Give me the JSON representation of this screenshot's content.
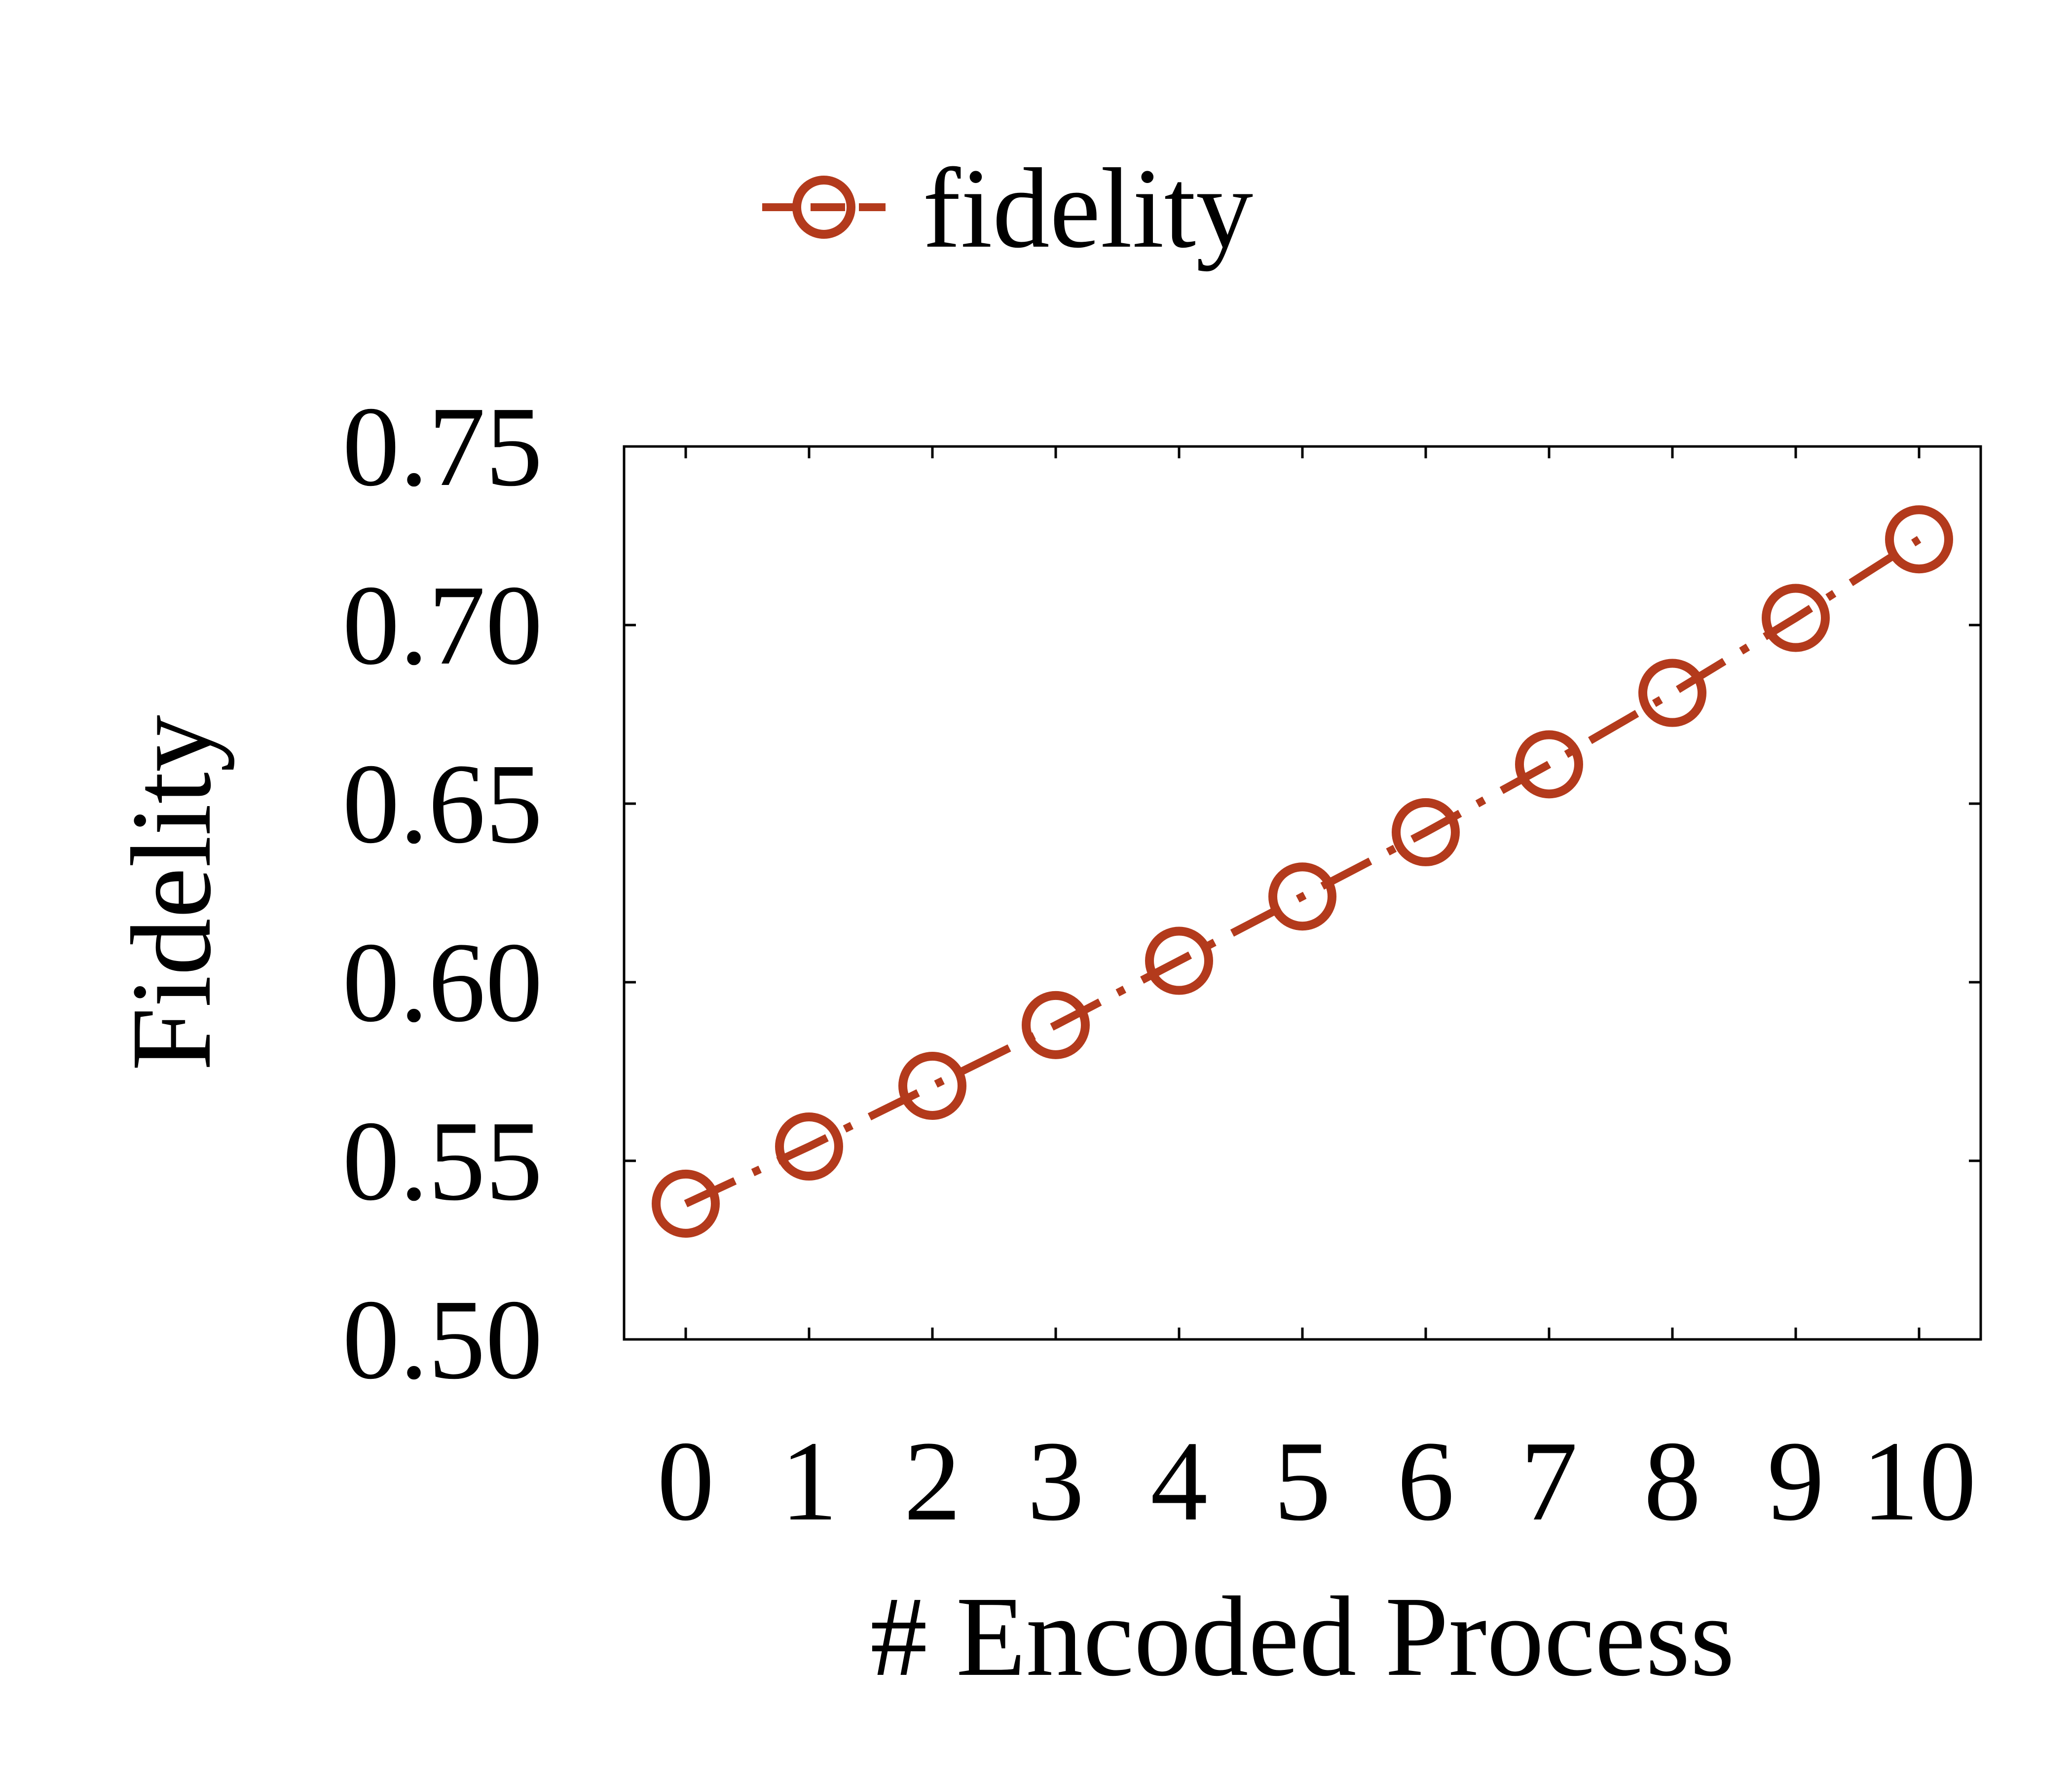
{
  "chart_data": {
    "type": "line",
    "title": "",
    "xlabel": "# Encoded Process",
    "ylabel": "Fidelity",
    "x": [
      0,
      1,
      2,
      3,
      4,
      5,
      6,
      7,
      8,
      9,
      10
    ],
    "x_tick_labels": [
      "0",
      "1",
      "2",
      "3",
      "4",
      "5",
      "6",
      "7",
      "8",
      "9",
      "10"
    ],
    "xlim": [
      -0.5,
      10.5
    ],
    "y_ticks": [
      0.5,
      0.55,
      0.6,
      0.65,
      0.7,
      0.75
    ],
    "y_tick_labels": [
      "0.50",
      "0.55",
      "0.60",
      "0.65",
      "0.70",
      "0.75"
    ],
    "ylim": [
      0.5,
      0.75
    ],
    "series": [
      {
        "name": "fidelity",
        "color": "#b33a1c",
        "line_style": "dash-dot",
        "marker": "open-circle",
        "values": [
          0.538,
          0.554,
          0.571,
          0.588,
          0.606,
          0.624,
          0.642,
          0.661,
          0.681,
          0.702,
          0.724
        ]
      }
    ],
    "legend": {
      "placement": "top-center",
      "entries": [
        "fidelity"
      ]
    },
    "grid": false
  }
}
